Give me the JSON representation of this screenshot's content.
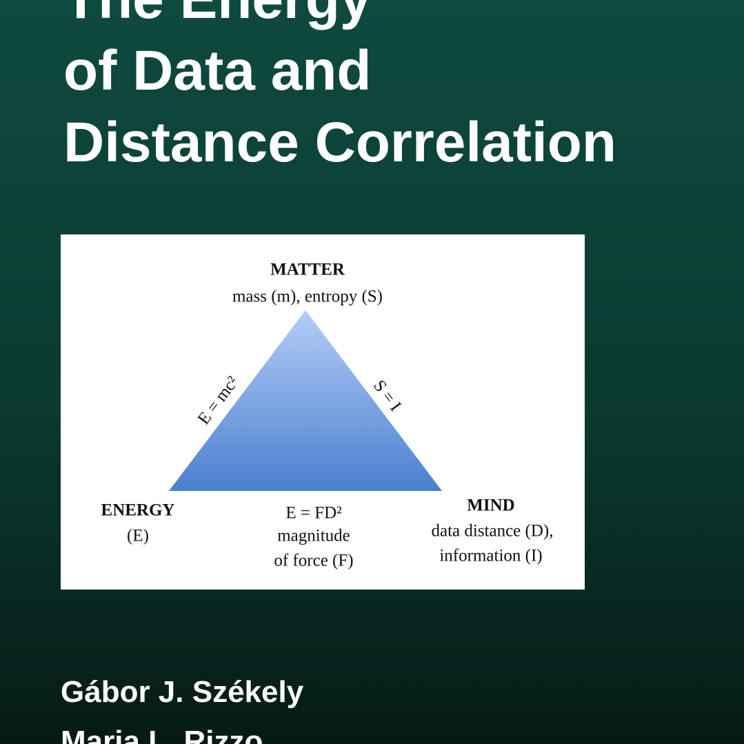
{
  "title": {
    "lines": [
      "The Energy",
      "of Data and",
      "Distance Correlation"
    ]
  },
  "diagram": {
    "matter": {
      "label": "MATTER",
      "detail": "mass (m), entropy (S)"
    },
    "energy": {
      "label": "ENERGY",
      "detail": "(E)"
    },
    "mind": {
      "label": "MIND",
      "detail": [
        "data distance (D),",
        "information (I)"
      ]
    },
    "edges": {
      "left": "E = mc²",
      "right": "S = I",
      "bottom": [
        "E = FD²",
        "magnitude",
        "of force (F)"
      ]
    }
  },
  "authors": [
    "Gábor J. Székely",
    "Maria L. Rizzo"
  ]
}
